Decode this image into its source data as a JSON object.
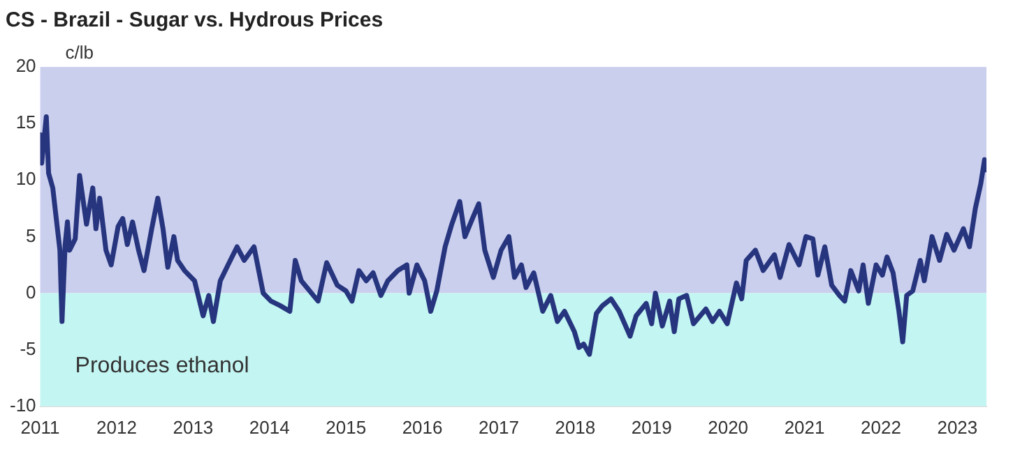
{
  "chart_data": {
    "type": "line",
    "title": "CS - Brazil - Sugar vs. Hydrous Prices",
    "ylabel": "c/lb",
    "x": [
      "2011-01-01",
      "2011-01-08",
      "2011-01-30",
      "2011-02-10",
      "2011-03-02",
      "2011-03-13",
      "2011-04-05",
      "2011-04-15",
      "2011-04-30",
      "2011-05-11",
      "2011-05-21",
      "2011-06-17",
      "2011-07-08",
      "2011-08-10",
      "2011-09-09",
      "2011-09-24",
      "2011-10-12",
      "2011-11-11",
      "2011-12-06",
      "2012-01-08",
      "2012-01-30",
      "2012-02-21",
      "2012-03-17",
      "2012-04-15",
      "2012-05-11",
      "2012-06-17",
      "2012-07-16",
      "2012-08-10",
      "2012-09-02",
      "2012-10-01",
      "2012-10-19",
      "2012-11-21",
      "2013-01-08",
      "2013-02-18",
      "2013-03-17",
      "2013-04-08",
      "2013-05-11",
      "2013-06-17",
      "2013-07-30",
      "2013-09-02",
      "2013-10-19",
      "2013-12-02",
      "2014-01-08",
      "2014-02-21",
      "2014-04-08",
      "2014-05-04",
      "2014-06-02",
      "2014-08-21",
      "2014-10-01",
      "2014-11-21",
      "2015-01-01",
      "2015-01-30",
      "2015-03-04",
      "2015-04-08",
      "2015-05-11",
      "2015-06-17",
      "2015-07-20",
      "2015-09-06",
      "2015-10-19",
      "2015-10-30",
      "2015-12-06",
      "2016-01-12",
      "2016-02-10",
      "2016-03-10",
      "2016-04-19",
      "2016-05-21",
      "2016-06-28",
      "2016-07-23",
      "2016-08-28",
      "2016-09-27",
      "2016-10-26",
      "2016-12-06",
      "2017-01-12",
      "2017-02-18",
      "2017-03-17",
      "2017-04-19",
      "2017-05-11",
      "2017-06-17",
      "2017-07-30",
      "2017-09-06",
      "2017-10-08",
      "2017-11-11",
      "2017-12-28",
      "2018-01-19",
      "2018-02-10",
      "2018-03-10",
      "2018-04-12",
      "2018-05-11",
      "2018-06-21",
      "2018-07-30",
      "2018-09-20",
      "2018-10-19",
      "2018-12-06",
      "2019-01-01",
      "2019-01-19",
      "2019-02-21",
      "2019-03-28",
      "2019-04-19",
      "2019-05-11",
      "2019-06-17",
      "2019-07-20",
      "2019-09-17",
      "2019-10-19",
      "2019-11-21",
      "2019-12-28",
      "2020-02-10",
      "2020-03-06",
      "2020-03-28",
      "2020-05-11",
      "2020-06-17",
      "2020-08-10",
      "2020-09-06",
      "2020-10-19",
      "2020-12-06",
      "2021-01-08",
      "2021-02-10",
      "2021-03-06",
      "2021-04-08",
      "2021-05-11",
      "2021-06-17",
      "2021-07-12",
      "2021-08-10",
      "2021-09-17",
      "2021-10-08",
      "2021-11-02",
      "2021-12-09",
      "2022-01-08",
      "2022-01-30",
      "2022-02-28",
      "2022-03-28",
      "2022-04-15",
      "2022-05-04",
      "2022-06-02",
      "2022-07-08",
      "2022-07-27",
      "2022-09-02",
      "2022-10-08",
      "2022-11-11",
      "2022-12-16",
      "2023-01-30",
      "2023-02-28",
      "2023-03-28",
      "2023-04-23",
      "2023-05-11",
      "2023-05-19"
    ],
    "series": [
      {
        "color": "#26357e",
        "values": [
          14.0,
          11.5,
          15.6,
          10.6,
          9.3,
          7.5,
          3.8,
          -2.5,
          4.3,
          6.3,
          3.8,
          4.8,
          10.4,
          6.1,
          9.3,
          5.7,
          8.4,
          3.8,
          2.5,
          5.9,
          6.6,
          4.3,
          6.3,
          3.8,
          2.0,
          5.7,
          8.4,
          5.7,
          2.3,
          5.0,
          2.9,
          2.0,
          1.1,
          -2.0,
          -0.2,
          -2.5,
          1.1,
          2.5,
          4.1,
          2.9,
          4.1,
          0,
          -0.7,
          -1.1,
          -1.6,
          2.9,
          1.1,
          -0.7,
          2.7,
          0.7,
          0.2,
          -0.7,
          2.0,
          1.1,
          1.8,
          -0.2,
          1.1,
          2.0,
          2.5,
          0,
          2.5,
          1.1,
          -1.6,
          0.2,
          4.1,
          6.1,
          8.1,
          5.0,
          6.6,
          7.9,
          3.8,
          1.4,
          3.8,
          5.0,
          1.4,
          2.5,
          0.5,
          1.8,
          -1.6,
          -0.2,
          -2.5,
          -1.6,
          -3.4,
          -4.8,
          -4.5,
          -5.4,
          -1.8,
          -1.1,
          -0.5,
          -1.6,
          -3.8,
          -2.0,
          -0.9,
          -2.7,
          0,
          -2.9,
          -0.7,
          -3.4,
          -0.5,
          -0.2,
          -2.7,
          -1.4,
          -2.5,
          -1.6,
          -2.7,
          0.9,
          -0.5,
          2.9,
          3.8,
          2.0,
          3.4,
          1.4,
          4.3,
          2.5,
          5.0,
          4.8,
          1.6,
          4.1,
          0.7,
          -0.2,
          -0.7,
          2.0,
          0.2,
          2.5,
          -0.9,
          2.5,
          1.6,
          3.2,
          1.8,
          -1.6,
          -4.3,
          -0.2,
          0.2,
          2.9,
          1.1,
          5.0,
          2.9,
          5.2,
          3.8,
          5.7,
          4.1,
          7.5,
          9.7,
          11.8,
          10.9
        ]
      }
    ],
    "xlim": [
      "2011-01-01",
      "2023-05-20"
    ],
    "xticks": [
      "2011",
      "2012",
      "2013",
      "2014",
      "2015",
      "2016",
      "2017",
      "2018",
      "2019",
      "2020",
      "2021",
      "2022",
      "2023"
    ],
    "ylim": [
      -10,
      20
    ],
    "yticks": [
      -10,
      -5,
      0,
      5,
      10,
      15,
      20
    ],
    "bands": [
      {
        "axis": "y",
        "from": 0,
        "to": 20,
        "color": "#cbcfee"
      },
      {
        "axis": "y",
        "from": -10,
        "to": 0,
        "color": "#c3f5f2",
        "label": "Produces ethanol"
      }
    ],
    "grid": false,
    "legend": false,
    "marker": "none",
    "line_style": "solid"
  }
}
